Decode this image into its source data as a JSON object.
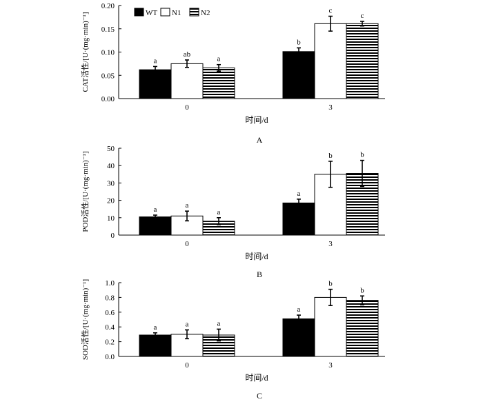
{
  "chart_data": [
    {
      "type": "bar",
      "panel_label": "A",
      "categories": [
        "0",
        "3"
      ],
      "xlabel": "时间/d",
      "ylabel": "CAT活性/[U·(mg·min)⁻¹]",
      "ylim": [
        0,
        0.2
      ],
      "yticks": [
        "0.00",
        "0.05",
        "0.10",
        "0.15",
        "0.20"
      ],
      "series": [
        {
          "name": "WT",
          "values": [
            0.062,
            0.101
          ],
          "errors": [
            0.007,
            0.008
          ],
          "letters": [
            "a",
            "b"
          ]
        },
        {
          "name": "N1",
          "values": [
            0.075,
            0.161
          ],
          "errors": [
            0.008,
            0.016
          ],
          "letters": [
            "ab",
            "c"
          ]
        },
        {
          "name": "N2",
          "values": [
            0.066,
            0.161
          ],
          "errors": [
            0.007,
            0.005
          ],
          "letters": [
            "a",
            "c"
          ]
        }
      ],
      "legend": {
        "position": "top-left",
        "entries": [
          "WT",
          "N1",
          "N2"
        ]
      }
    },
    {
      "type": "bar",
      "panel_label": "B",
      "categories": [
        "0",
        "3"
      ],
      "xlabel": "时间/d",
      "ylabel": "POD活性/[U·(mg·min)⁻¹]",
      "ylim": [
        0,
        50
      ],
      "yticks": [
        "0",
        "10",
        "20",
        "30",
        "40",
        "50"
      ],
      "series": [
        {
          "name": "WT",
          "values": [
            10.5,
            18.5
          ],
          "errors": [
            1.0,
            2.2
          ],
          "letters": [
            "a",
            "a"
          ]
        },
        {
          "name": "N1",
          "values": [
            11.0,
            35.0
          ],
          "errors": [
            2.8,
            7.5
          ],
          "letters": [
            "a",
            "b"
          ]
        },
        {
          "name": "N2",
          "values": [
            8.0,
            35.5
          ],
          "errors": [
            2.0,
            7.5
          ],
          "letters": [
            "a",
            "b"
          ]
        }
      ]
    },
    {
      "type": "bar",
      "panel_label": "C",
      "categories": [
        "0",
        "3"
      ],
      "xlabel": "时间/d",
      "ylabel": "SOD活性/[U·(mg·min)⁻¹]",
      "ylim": [
        0,
        1.0
      ],
      "yticks": [
        "0.0",
        "0.2",
        "0.4",
        "0.6",
        "0.8",
        "1.0"
      ],
      "series": [
        {
          "name": "WT",
          "values": [
            0.29,
            0.51
          ],
          "errors": [
            0.03,
            0.05
          ],
          "letters": [
            "a",
            "a"
          ]
        },
        {
          "name": "N1",
          "values": [
            0.3,
            0.8
          ],
          "errors": [
            0.06,
            0.11
          ],
          "letters": [
            "a",
            "b"
          ]
        },
        {
          "name": "N2",
          "values": [
            0.29,
            0.76
          ],
          "errors": [
            0.08,
            0.06
          ],
          "letters": [
            "a",
            "b"
          ]
        }
      ]
    }
  ]
}
